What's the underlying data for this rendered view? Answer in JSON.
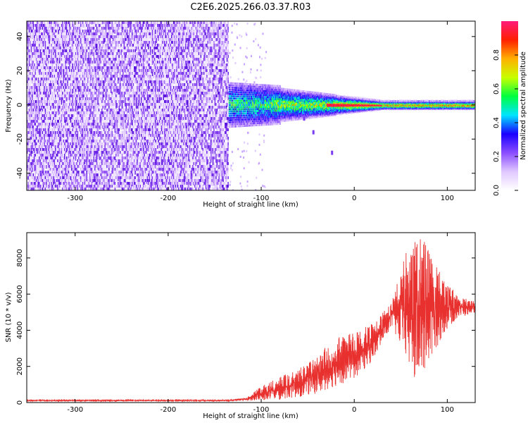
{
  "title": "C2E6.2025.266.03.37.R03",
  "colors": {
    "signal_line": "#e8312f",
    "scatter_dot": "#6a1fd8",
    "frame": "#000000"
  },
  "chart_data": [
    {
      "type": "heatmap",
      "xlabel": "Height of straight line (km)",
      "ylabel": "Frequency (Hz)",
      "xlim": [
        -352,
        130
      ],
      "ylim": [
        -50,
        49
      ],
      "xticks": [
        -300,
        -200,
        -100,
        0,
        100
      ],
      "xtick_labels": [
        "-300",
        "-200",
        "-100",
        "0",
        "100"
      ],
      "yticks": [
        -40,
        -20,
        0,
        20,
        40
      ],
      "ytick_labels": [
        "-40",
        "-20",
        "0",
        "20",
        "40"
      ],
      "description_regions": {
        "noise_band_x": [
          -352,
          -135
        ],
        "signal_start_x": -135,
        "carrier_frequency_hz": 0,
        "stray_points": [
          {
            "x": -45,
            "y": -16
          },
          {
            "x": -25,
            "y": -28
          },
          {
            "x": -55,
            "y": -8
          }
        ]
      },
      "colorbar": {
        "label": "Normalized spectral amplitude",
        "range": [
          0,
          1
        ],
        "ticks": [
          0,
          0.2,
          0.4,
          0.6,
          0.8
        ],
        "tick_labels": [
          "0.0",
          "0.2",
          "0.4",
          "0.6",
          "0.8"
        ],
        "colormap": [
          "#ffffff",
          "#e0c8ff",
          "#8a4dff",
          "#1a00ff",
          "#00e5ff",
          "#00ff40",
          "#c8ff00",
          "#ffb000",
          "#ff2000",
          "#ff1a7a"
        ]
      }
    },
    {
      "type": "line",
      "xlabel": "Height of straight line (km)",
      "ylabel": "SNR (10 * v/v)",
      "xlim": [
        -352,
        130
      ],
      "ylim": [
        0,
        9400
      ],
      "xticks": [
        -300,
        -200,
        -100,
        0,
        100
      ],
      "xtick_labels": [
        "-300",
        "-200",
        "-100",
        "0",
        "100"
      ],
      "yticks": [
        0,
        2000,
        4000,
        6000,
        8000
      ],
      "ytick_labels": [
        "0",
        "2000",
        "4000",
        "6000",
        "8000"
      ],
      "envelope": [
        {
          "x": -352,
          "low": 80,
          "high": 150
        },
        {
          "x": -135,
          "low": 80,
          "high": 150
        },
        {
          "x": -115,
          "low": 100,
          "high": 300
        },
        {
          "x": -100,
          "low": 120,
          "high": 900
        },
        {
          "x": -80,
          "low": 150,
          "high": 1400
        },
        {
          "x": -60,
          "low": 300,
          "high": 1900
        },
        {
          "x": -40,
          "low": 500,
          "high": 2600
        },
        {
          "x": -20,
          "low": 900,
          "high": 3600
        },
        {
          "x": 0,
          "low": 1300,
          "high": 3900
        },
        {
          "x": 20,
          "low": 2300,
          "high": 4400
        },
        {
          "x": 40,
          "low": 4200,
          "high": 5500
        },
        {
          "x": 55,
          "low": 2500,
          "high": 8200
        },
        {
          "x": 65,
          "low": 1000,
          "high": 9400
        },
        {
          "x": 75,
          "low": 1500,
          "high": 9000
        },
        {
          "x": 85,
          "low": 2600,
          "high": 7800
        },
        {
          "x": 95,
          "low": 3700,
          "high": 7000
        },
        {
          "x": 110,
          "low": 4600,
          "high": 6000
        },
        {
          "x": 130,
          "low": 5000,
          "high": 5600
        }
      ]
    }
  ]
}
